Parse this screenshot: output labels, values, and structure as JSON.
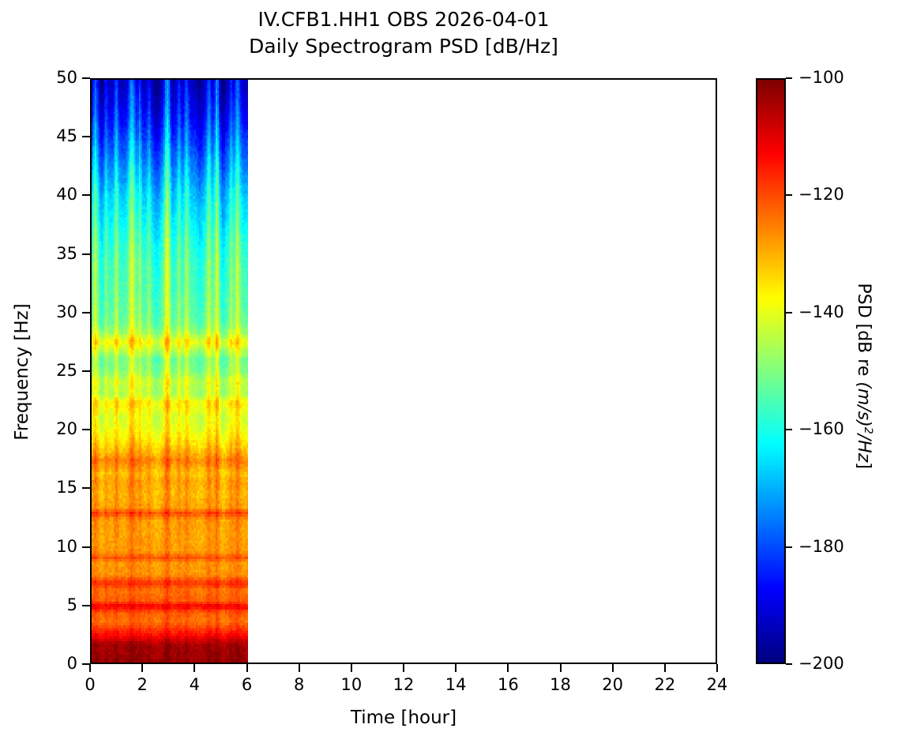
{
  "figure": {
    "title_line1": "IV.CFB1.HH1 OBS 2026-04-01",
    "title_line2": "Daily Spectrogram PSD [dB/Hz]"
  },
  "chart_data": {
    "type": "heatmap",
    "subtype": "daily-spectrogram",
    "title": "IV.CFB1.HH1 OBS 2026-04-01 — Daily Spectrogram PSD [dB/Hz]",
    "xlabel": "Time [hour]",
    "ylabel": "Frequency [Hz]",
    "xlim": [
      0,
      24
    ],
    "ylim": [
      0,
      50
    ],
    "xticks": [
      0,
      2,
      4,
      6,
      8,
      10,
      12,
      14,
      16,
      18,
      20,
      22,
      24
    ],
    "yticks": [
      0,
      5,
      10,
      15,
      20,
      25,
      30,
      35,
      40,
      45,
      50
    ],
    "grid_off": true,
    "colormap": "jet",
    "clim": [
      -200,
      -100
    ],
    "data_time_extent_hours": [
      0,
      6
    ],
    "colorbar": {
      "ticks": [
        -100,
        -120,
        -140,
        -160,
        -180,
        -200
      ],
      "tick_labels": [
        "−100",
        "−120",
        "−140",
        "−160",
        "−180",
        "−200"
      ],
      "label_prefix": "PSD [dB re ",
      "label_math": "(m/s)",
      "label_sup": "2",
      "label_math_suffix": "/Hz",
      "label_close": "]"
    },
    "base_psd_profile_hz_db": [
      [
        0,
        -103
      ],
      [
        1.5,
        -104
      ],
      [
        2.5,
        -115
      ],
      [
        3.5,
        -124
      ],
      [
        4.3,
        -122
      ],
      [
        4.8,
        -112
      ],
      [
        5.3,
        -122
      ],
      [
        6.2,
        -124
      ],
      [
        6.8,
        -117
      ],
      [
        7.5,
        -127
      ],
      [
        8.5,
        -128
      ],
      [
        9.0,
        -121
      ],
      [
        9.5,
        -128
      ],
      [
        11,
        -129
      ],
      [
        12.3,
        -128
      ],
      [
        12.8,
        -120
      ],
      [
        13.3,
        -129
      ],
      [
        14.5,
        -131
      ],
      [
        15.5,
        -129
      ],
      [
        16.2,
        -132
      ],
      [
        17.3,
        -126
      ],
      [
        18.0,
        -131
      ],
      [
        19,
        -136
      ],
      [
        20,
        -140
      ],
      [
        21,
        -142
      ],
      [
        22.3,
        -137
      ],
      [
        23,
        -146
      ],
      [
        24.1,
        -144
      ],
      [
        25,
        -150
      ],
      [
        26,
        -152
      ],
      [
        27.5,
        -139
      ],
      [
        28.2,
        -147
      ],
      [
        29,
        -152
      ],
      [
        30,
        -154
      ],
      [
        32,
        -156
      ],
      [
        34,
        -157
      ],
      [
        36,
        -160
      ],
      [
        38,
        -164
      ],
      [
        40,
        -168
      ],
      [
        42,
        -174
      ],
      [
        44,
        -180
      ],
      [
        46,
        -186
      ],
      [
        48,
        -191
      ],
      [
        50,
        -195
      ]
    ],
    "streaks": [
      {
        "t": 0.15,
        "w": 0.07,
        "amp": 16
      },
      {
        "t": 0.55,
        "w": 0.05,
        "amp": 9
      },
      {
        "t": 0.95,
        "w": 0.06,
        "amp": 14
      },
      {
        "t": 1.55,
        "w": 0.1,
        "amp": 20
      },
      {
        "t": 1.85,
        "w": 0.05,
        "amp": 12
      },
      {
        "t": 2.2,
        "w": 0.05,
        "amp": 9
      },
      {
        "t": 2.9,
        "w": 0.09,
        "amp": 22
      },
      {
        "t": 3.35,
        "w": 0.05,
        "amp": 11
      },
      {
        "t": 3.65,
        "w": 0.06,
        "amp": 14
      },
      {
        "t": 4.5,
        "w": 0.07,
        "amp": 15
      },
      {
        "t": 4.8,
        "w": 0.06,
        "amp": 20
      },
      {
        "t": 5.35,
        "w": 0.05,
        "amp": 11
      },
      {
        "t": 5.6,
        "w": 0.08,
        "amp": 17
      },
      {
        "t": 0.4,
        "w": 0.08,
        "amp": -5
      },
      {
        "t": 2.5,
        "w": 0.1,
        "amp": -6
      },
      {
        "t": 3.1,
        "w": 0.05,
        "amp": -4
      },
      {
        "t": 4.15,
        "w": 0.08,
        "amp": -5
      },
      {
        "t": 5.05,
        "w": 0.07,
        "amp": -7
      }
    ],
    "streak_freq_weight": {
      "floor": 0.18,
      "min_freq": 8,
      "full_freq": 42
    },
    "noise_db": 2.2,
    "grid": {
      "time_columns": 96,
      "freq_rows": 220
    },
    "seed": 12345
  }
}
